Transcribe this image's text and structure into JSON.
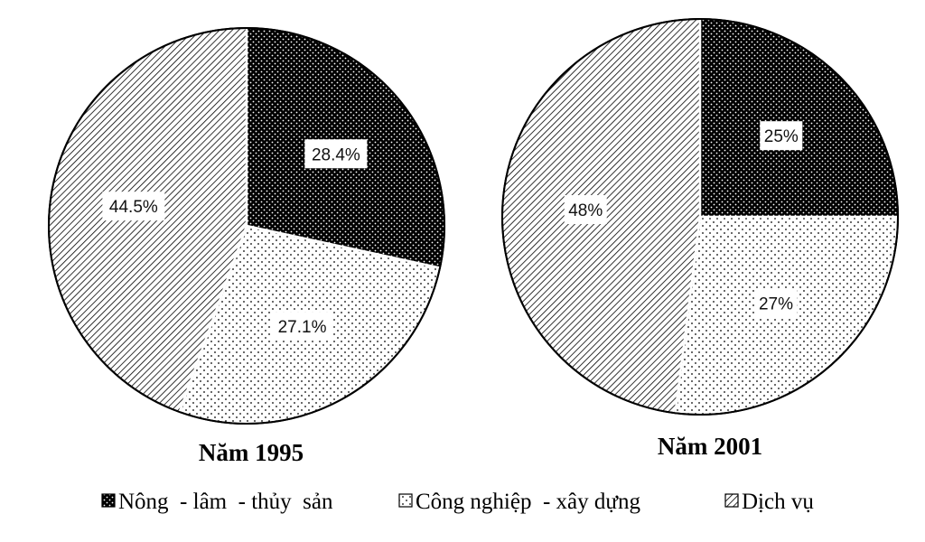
{
  "chart_data": [
    {
      "type": "pie",
      "title": "Năm 1995",
      "categories": [
        "Nông - lâm - thủy sản",
        "Công nghiệp - xây dựng",
        "Dịch vụ"
      ],
      "values": [
        28.4,
        27.1,
        44.5
      ],
      "labels": [
        "28.4%",
        "27.1%",
        "44.5%"
      ]
    },
    {
      "type": "pie",
      "title": "Năm 2001",
      "categories": [
        "Nông - lâm - thủy sản",
        "Công nghiệp - xây dựng",
        "Dịch vụ"
      ],
      "values": [
        25,
        27,
        48
      ],
      "labels": [
        "25%",
        "27%",
        "48%"
      ]
    }
  ],
  "legend": [
    {
      "label": "Nông  - lâm  - thủy  sản",
      "pattern": "dots-dark"
    },
    {
      "label": "Công nghiệp  - xây dựng",
      "pattern": "dots-light"
    },
    {
      "label": "Dịch vụ",
      "pattern": "diagonal-hatch"
    }
  ],
  "colors": {
    "outline": "#000000",
    "background": "#ffffff",
    "dark_fill": "#000000",
    "light_fill": "#ffffff"
  }
}
